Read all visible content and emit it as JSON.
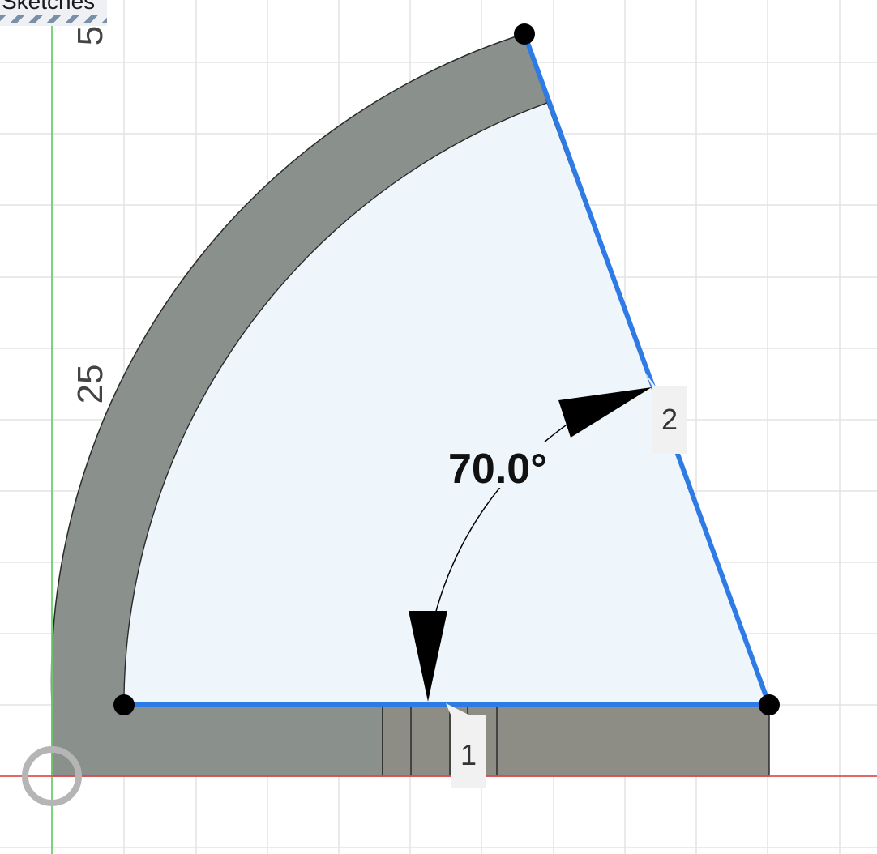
{
  "browser": {
    "sketches_label": "Sketches"
  },
  "ruler": {
    "tick_top": "5",
    "tick_mid": "25"
  },
  "dimension": {
    "angle_value": "70.0°"
  },
  "constraints": {
    "tag_1": "1",
    "tag_2": "2"
  },
  "colors": {
    "grid": "#e3e3e3",
    "axis_x": "#e05050",
    "axis_y": "#6ccf6c",
    "profile_fill": "#eef6fc",
    "body_fill": "#8a908c",
    "base_fill": "#8e8d85",
    "sketch_line": "#2f7be6",
    "point": "#000000"
  }
}
